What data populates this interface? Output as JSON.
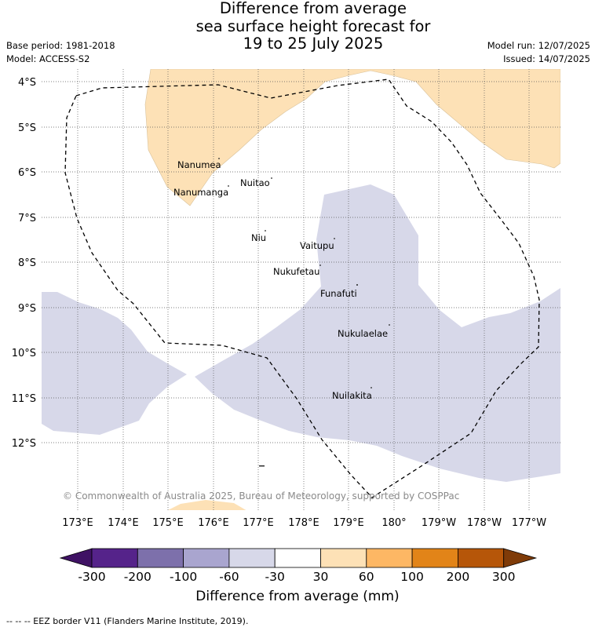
{
  "title": {
    "line1": "Difference from average",
    "line2": "sea surface height forecast for",
    "line3": "19 to 25 July 2025"
  },
  "header": {
    "base_period": "Base period: 1981-2018",
    "model": "Model: ACCESS-S2",
    "model_run": "Model run: 12/07/2025",
    "issued": "Issued: 14/07/2025"
  },
  "axes": {
    "lat_labels": [
      "4°S",
      "5°S",
      "6°S",
      "7°S",
      "8°S",
      "9°S",
      "10°S",
      "11°S",
      "12°S"
    ],
    "lon_labels": [
      "173°E",
      "174°E",
      "175°E",
      "176°E",
      "177°E",
      "178°E",
      "179°E",
      "180°",
      "179°W",
      "178°W",
      "177°W"
    ]
  },
  "places": [
    "Nanumea",
    "Nuitao",
    "Nanumanga",
    "Niu",
    "Vaitupu",
    "Nukufetau",
    "Funafuti",
    "Nukulaelae",
    "Nuilakita"
  ],
  "copyright": "© Commonwealth of Australia 2025, Bureau of Meteorology, supported by COSPPac",
  "colorbar": {
    "ticks": [
      "-300",
      "-200",
      "-100",
      "-60",
      "-30",
      "30",
      "60",
      "100",
      "200",
      "300"
    ],
    "colors": [
      "#3f1264",
      "#55238a",
      "#7d70ab",
      "#a9a5cf",
      "#d7d8e9",
      "#ffffff",
      "#fde1b6",
      "#fdb764",
      "#e28418",
      "#b65609",
      "#7f3b08"
    ],
    "label": "Difference from average (mm)"
  },
  "footer": "-- -- -- EEZ border V11 (Flanders Marine Institute, 2019)."
}
